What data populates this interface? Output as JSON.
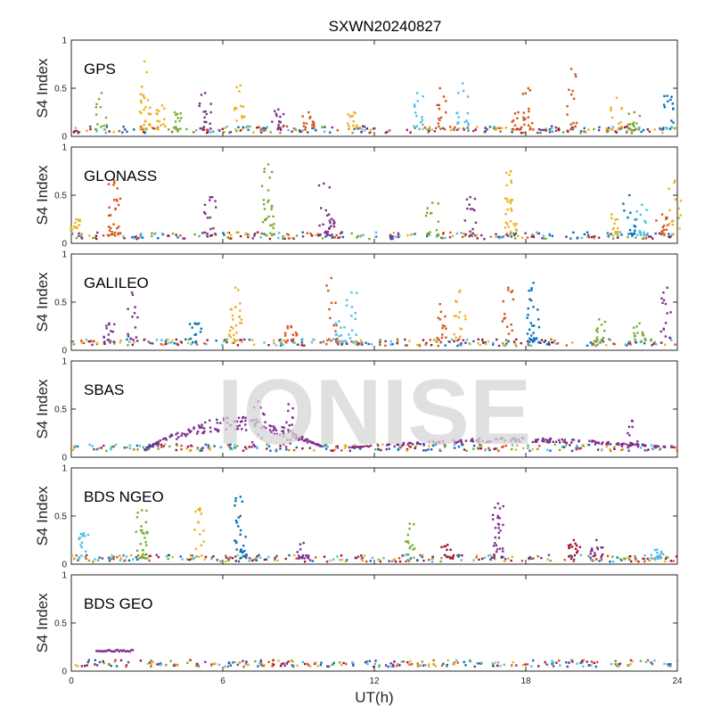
{
  "figure": {
    "title": "SXWN20240827",
    "xlabel": "UT(h)",
    "watermark": "IONISE",
    "colors": [
      "#0072bd",
      "#d95319",
      "#edb120",
      "#7e2f8e",
      "#77ac30",
      "#4dbeee",
      "#a2142f"
    ]
  },
  "chart_data": [
    {
      "type": "scatter",
      "panel": "GPS",
      "ylabel": "S4 Index",
      "xlim": [
        0,
        24
      ],
      "ylim": [
        0,
        1
      ],
      "xticks": [
        "0",
        "6",
        "12",
        "18",
        "24"
      ],
      "yticks": [
        "0",
        "0.5",
        "1"
      ],
      "baseline": 0.07,
      "spikes": [
        {
          "x": 1.2,
          "y": 0.45,
          "c": 4
        },
        {
          "x": 2.9,
          "y": 0.78,
          "c": 2
        },
        {
          "x": 2.9,
          "y": 0.4,
          "c": 2
        },
        {
          "x": 3.6,
          "y": 0.32,
          "c": 2
        },
        {
          "x": 4.1,
          "y": 0.25,
          "c": 4
        },
        {
          "x": 5.3,
          "y": 0.45,
          "c": 3
        },
        {
          "x": 6.7,
          "y": 0.53,
          "c": 2
        },
        {
          "x": 8.2,
          "y": 0.28,
          "c": 3
        },
        {
          "x": 9.4,
          "y": 0.25,
          "c": 1
        },
        {
          "x": 11.2,
          "y": 0.25,
          "c": 2
        },
        {
          "x": 13.7,
          "y": 0.45,
          "c": 5
        },
        {
          "x": 14.6,
          "y": 0.5,
          "c": 1
        },
        {
          "x": 15.5,
          "y": 0.55,
          "c": 5
        },
        {
          "x": 17.7,
          "y": 0.25,
          "c": 1
        },
        {
          "x": 18.1,
          "y": 0.5,
          "c": 1
        },
        {
          "x": 19.8,
          "y": 0.7,
          "c": 1
        },
        {
          "x": 21.6,
          "y": 0.4,
          "c": 2
        },
        {
          "x": 22.3,
          "y": 0.25,
          "c": 4
        },
        {
          "x": 23.6,
          "y": 0.42,
          "c": 0
        }
      ],
      "bursts": []
    },
    {
      "type": "scatter",
      "panel": "GLONASS",
      "ylabel": "S4 Index",
      "xlim": [
        0,
        24
      ],
      "ylim": [
        0,
        1
      ],
      "xticks": [
        "0",
        "6",
        "12",
        "18",
        "24"
      ],
      "yticks": [
        "0",
        "0.5",
        "1"
      ],
      "baseline": 0.08,
      "spikes": [
        {
          "x": 0.2,
          "y": 0.25,
          "c": 2
        },
        {
          "x": 1.7,
          "y": 0.65,
          "c": 1
        },
        {
          "x": 1.7,
          "y": 0.45,
          "c": 1
        },
        {
          "x": 5.5,
          "y": 0.48,
          "c": 3
        },
        {
          "x": 7.8,
          "y": 0.82,
          "c": 4
        },
        {
          "x": 7.8,
          "y": 0.55,
          "c": 4
        },
        {
          "x": 10.0,
          "y": 0.62,
          "c": 3
        },
        {
          "x": 10.2,
          "y": 0.3,
          "c": 3
        },
        {
          "x": 14.3,
          "y": 0.42,
          "c": 4
        },
        {
          "x": 15.8,
          "y": 0.48,
          "c": 3
        },
        {
          "x": 17.4,
          "y": 0.75,
          "c": 2
        },
        {
          "x": 17.4,
          "y": 0.45,
          "c": 2
        },
        {
          "x": 21.4,
          "y": 0.3,
          "c": 2
        },
        {
          "x": 22.1,
          "y": 0.5,
          "c": 0
        },
        {
          "x": 22.6,
          "y": 0.4,
          "c": 5
        },
        {
          "x": 23.4,
          "y": 0.3,
          "c": 1
        },
        {
          "x": 23.9,
          "y": 0.65,
          "c": 2
        }
      ],
      "bursts": []
    },
    {
      "type": "scatter",
      "panel": "GALILEO",
      "ylabel": "S4 Index",
      "xlim": [
        0,
        24
      ],
      "ylim": [
        0,
        1
      ],
      "xticks": [
        "0",
        "6",
        "12",
        "18",
        "24"
      ],
      "yticks": [
        "0",
        "0.5",
        "1"
      ],
      "baseline": 0.08,
      "spikes": [
        {
          "x": 1.5,
          "y": 0.28,
          "c": 3
        },
        {
          "x": 2.4,
          "y": 0.6,
          "c": 3
        },
        {
          "x": 4.9,
          "y": 0.28,
          "c": 0
        },
        {
          "x": 6.5,
          "y": 0.65,
          "c": 2
        },
        {
          "x": 6.5,
          "y": 0.45,
          "c": 2
        },
        {
          "x": 8.7,
          "y": 0.25,
          "c": 1
        },
        {
          "x": 10.3,
          "y": 0.75,
          "c": 1
        },
        {
          "x": 11.1,
          "y": 0.6,
          "c": 5
        },
        {
          "x": 10.6,
          "y": 0.3,
          "c": 5
        },
        {
          "x": 14.6,
          "y": 0.48,
          "c": 1
        },
        {
          "x": 15.4,
          "y": 0.62,
          "c": 2
        },
        {
          "x": 17.3,
          "y": 0.65,
          "c": 1
        },
        {
          "x": 18.3,
          "y": 0.7,
          "c": 0
        },
        {
          "x": 18.3,
          "y": 0.45,
          "c": 0
        },
        {
          "x": 20.9,
          "y": 0.32,
          "c": 4
        },
        {
          "x": 22.5,
          "y": 0.28,
          "c": 4
        },
        {
          "x": 23.6,
          "y": 0.65,
          "c": 3
        }
      ],
      "bursts": []
    },
    {
      "type": "scatter",
      "panel": "SBAS",
      "ylabel": "S4 Index",
      "xlim": [
        0,
        24
      ],
      "ylim": [
        0,
        1
      ],
      "xticks": [
        "0",
        "6",
        "12",
        "18",
        "24"
      ],
      "yticks": [
        "0",
        "0.5",
        "1"
      ],
      "baseline": 0.1,
      "spikes": [
        {
          "x": 8.6,
          "y": 0.55,
          "c": 3
        },
        {
          "x": 7.4,
          "y": 0.58,
          "c": 3
        },
        {
          "x": 22.2,
          "y": 0.38,
          "c": 3
        }
      ],
      "bursts": [
        {
          "x0": 3.0,
          "x1": 10.0,
          "peak": 0.42,
          "c": 3
        },
        {
          "x0": 11.0,
          "x1": 24.0,
          "peak": 0.2,
          "c": 3
        }
      ]
    },
    {
      "type": "scatter",
      "panel": "BDS NGEO",
      "ylabel": "S4 Index",
      "xlim": [
        0,
        24
      ],
      "ylim": [
        0,
        1
      ],
      "xticks": [
        "0",
        "6",
        "12",
        "18",
        "24"
      ],
      "yticks": [
        "0",
        "0.5",
        "1"
      ],
      "baseline": 0.06,
      "spikes": [
        {
          "x": 0.5,
          "y": 0.32,
          "c": 5
        },
        {
          "x": 2.8,
          "y": 0.56,
          "c": 4
        },
        {
          "x": 2.8,
          "y": 0.35,
          "c": 4
        },
        {
          "x": 5.1,
          "y": 0.58,
          "c": 2
        },
        {
          "x": 6.7,
          "y": 0.7,
          "c": 0
        },
        {
          "x": 6.7,
          "y": 0.5,
          "c": 0
        },
        {
          "x": 9.2,
          "y": 0.22,
          "c": 3
        },
        {
          "x": 13.4,
          "y": 0.42,
          "c": 4
        },
        {
          "x": 14.9,
          "y": 0.2,
          "c": 6
        },
        {
          "x": 16.9,
          "y": 0.63,
          "c": 3
        },
        {
          "x": 16.9,
          "y": 0.5,
          "c": 3
        },
        {
          "x": 19.9,
          "y": 0.25,
          "c": 6
        },
        {
          "x": 20.8,
          "y": 0.25,
          "c": 3
        },
        {
          "x": 23.2,
          "y": 0.15,
          "c": 5
        }
      ],
      "bursts": []
    },
    {
      "type": "scatter",
      "panel": "BDS GEO",
      "ylabel": "S4 Index",
      "xlim": [
        0,
        24
      ],
      "ylim": [
        0,
        1
      ],
      "xticks": [
        "0",
        "6",
        "12",
        "18",
        "24"
      ],
      "yticks": [
        "0",
        "0.5",
        "1"
      ],
      "baseline": 0.08,
      "spikes": [],
      "bursts": [],
      "segment": {
        "x0": 1.0,
        "x1": 2.5,
        "y": 0.21,
        "c": 3
      }
    }
  ]
}
